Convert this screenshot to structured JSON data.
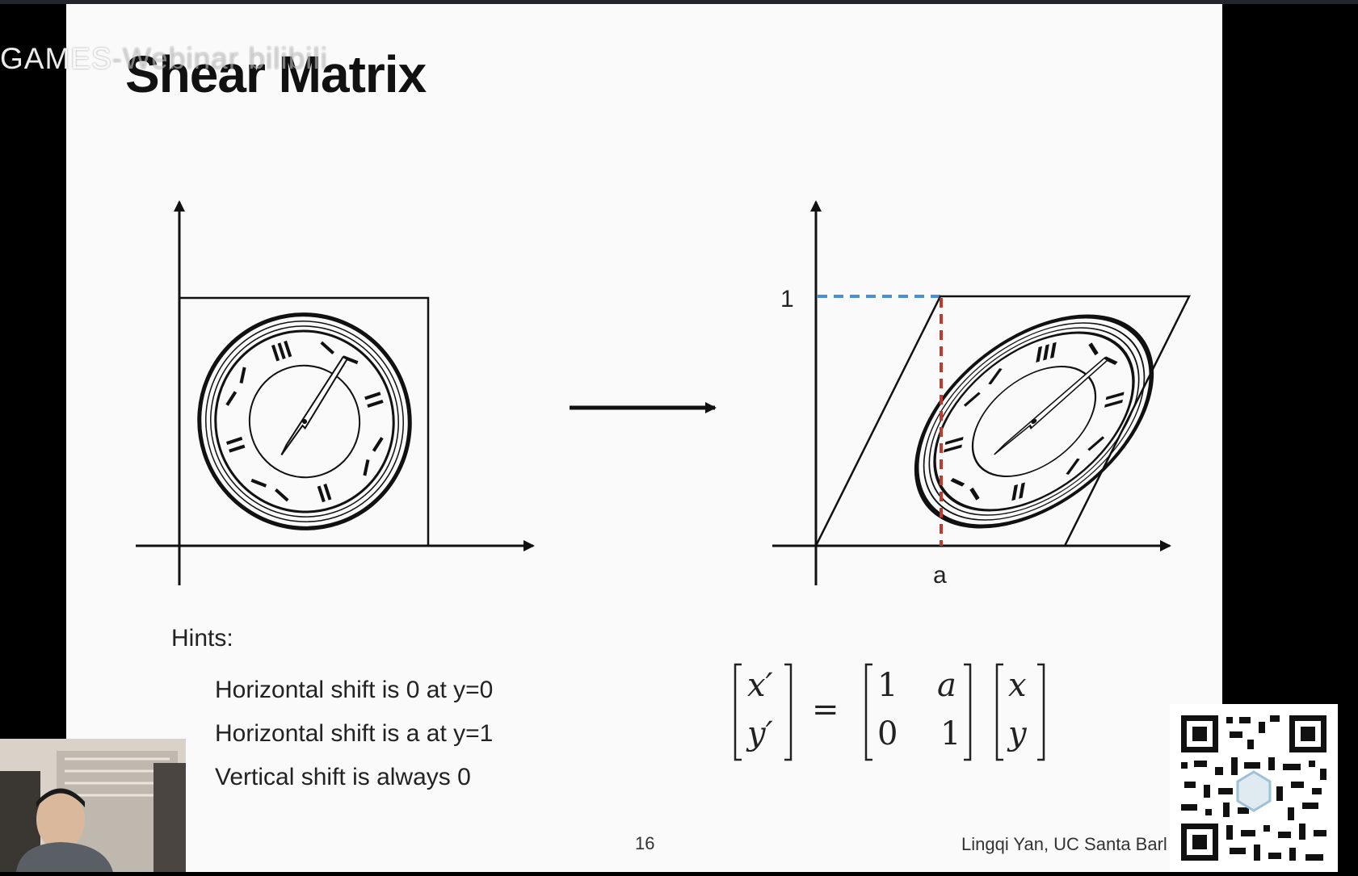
{
  "slide": {
    "title": "Shear Matrix",
    "watermark": "GAMES",
    "watermark_ghost": "-Webinar bilibili",
    "axis_label_1": "1",
    "axis_label_a": "a",
    "hints_title": "Hints:",
    "hints": [
      "Horizontal shift is 0 at y=0",
      "Horizontal shift is a at y=1",
      "Vertical shift is always 0"
    ],
    "page_number": "16",
    "credit": "Lingqi Yan, UC Santa Barl",
    "equation": {
      "lhs": [
        "x′",
        "y′"
      ],
      "equals": "=",
      "matrix": [
        [
          "1",
          "a"
        ],
        [
          "0",
          "1"
        ]
      ],
      "rhs": [
        "x",
        "y"
      ]
    },
    "colors": {
      "dashed_blue": "#4a90d9",
      "dashed_red": "#c0392b",
      "ink": "#111111"
    }
  },
  "overlays": {
    "webcam_icon": "presenter-webcam",
    "qr_icon": "qr-code-icon"
  }
}
